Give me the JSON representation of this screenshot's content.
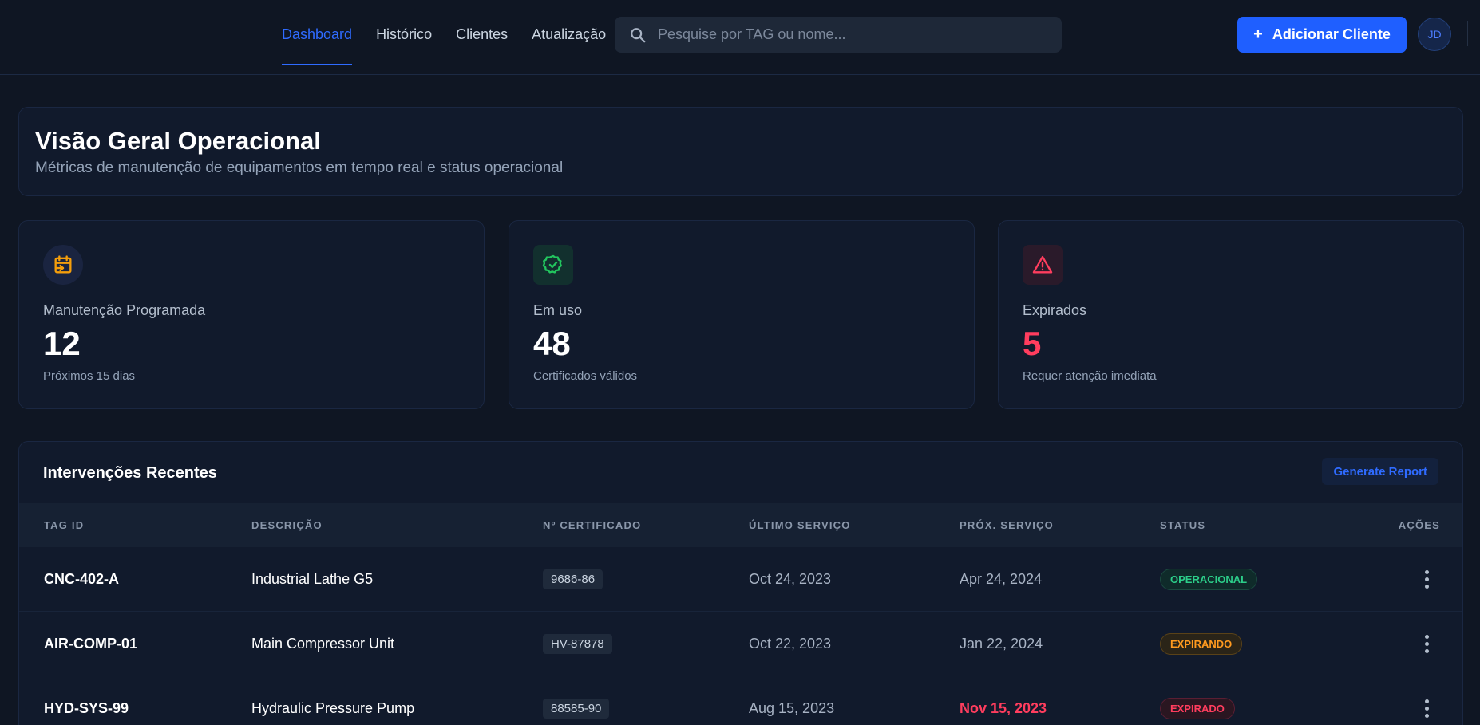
{
  "nav": {
    "items": [
      {
        "label": "Dashboard",
        "active": true
      },
      {
        "label": "Histórico",
        "active": false
      },
      {
        "label": "Clientes",
        "active": false
      },
      {
        "label": "Atualização",
        "active": false
      }
    ]
  },
  "search": {
    "placeholder": "Pesquise por TAG ou nome...",
    "value": "",
    "icon": "search-icon"
  },
  "header": {
    "add_button_label": "Adicionar Cliente",
    "add_button_icon": "+",
    "avatar_initials": "JD",
    "accent": "#1f5fff"
  },
  "overview": {
    "title": "Visão Geral Operacional",
    "subtitle": "Métricas de manutenção de equipamentos em tempo real e status operacional"
  },
  "stats": [
    {
      "label": "Manutenção Programada",
      "value": "12",
      "sub": "Próximos 15 dias",
      "icon": "calendar-icon",
      "color": "#f59e0b"
    },
    {
      "label": "Em uso",
      "value": "48",
      "sub": "Certificados válidos",
      "icon": "badge-check-icon",
      "color": "#22c55e"
    },
    {
      "label": "Expirados",
      "value": "5",
      "sub": "Requer atenção imediata",
      "icon": "warning-icon",
      "color": "#ff3d5e"
    }
  ],
  "recent": {
    "title": "Intervenções Recentes",
    "report_button": "Generate Report",
    "columns": [
      "TAG ID",
      "DESCRIÇÃO",
      "Nº CERTIFICADO",
      "ÚLTIMO SERVIÇO",
      "PRÓX. SERVIÇO",
      "STATUS",
      "AÇÕES"
    ],
    "rows": [
      {
        "tag": "CNC-402-A",
        "desc": "Industrial Lathe G5",
        "cert": "9686-86",
        "last": "Oct 24, 2023",
        "next": "Apr 24, 2024",
        "status": "OPERACIONAL",
        "status_kind": "ok"
      },
      {
        "tag": "AIR-COMP-01",
        "desc": "Main Compressor Unit",
        "cert": "HV-87878",
        "last": "Oct 22, 2023",
        "next": "Jan 22, 2024",
        "status": "EXPIRANDO",
        "status_kind": "warn"
      },
      {
        "tag": "HYD-SYS-99",
        "desc": "Hydraulic Pressure Pump",
        "cert": "88585-90",
        "last": "Aug 15, 2023",
        "next": "Nov 15, 2023",
        "status": "EXPIRADO",
        "status_kind": "err"
      }
    ]
  }
}
